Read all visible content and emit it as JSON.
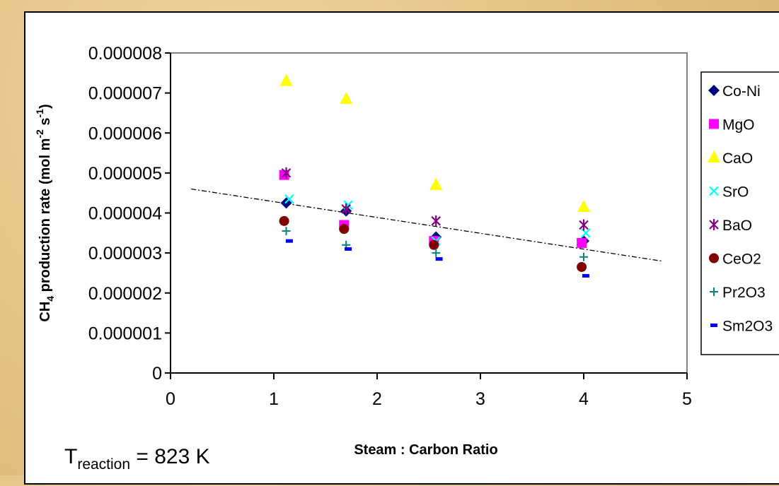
{
  "chart_data": {
    "type": "scatter",
    "title": "",
    "xlabel": "Steam : Carbon Ratio",
    "ylabel": {
      "prefix": "CH",
      "sub": "4",
      "rest": " production rate (mol m",
      "sup1": "-2",
      "mid": " s",
      "sup2": "-1",
      "end": ")"
    },
    "xlim": [
      0,
      5
    ],
    "ylim": [
      0,
      8e-06
    ],
    "xticks": [
      "0",
      "1",
      "2",
      "3",
      "4",
      "5"
    ],
    "yticks": [
      "0",
      "0.000001",
      "0.000002",
      "0.000003",
      "0.000004",
      "0.000005",
      "0.000006",
      "0.000007",
      "0.000008"
    ],
    "grid": false,
    "legend_position": "right",
    "series": [
      {
        "name": "Co-Ni",
        "marker": "diamond",
        "color": "#000080",
        "points": [
          [
            1.12,
            4.25e-06
          ],
          [
            1.7,
            4.05e-06
          ],
          [
            2.57,
            3.4e-06
          ],
          [
            4.0,
            3.3e-06
          ]
        ]
      },
      {
        "name": "MgO",
        "marker": "square",
        "color": "#ff00ff",
        "points": [
          [
            1.1,
            4.95e-06
          ],
          [
            1.68,
            3.7e-06
          ],
          [
            2.55,
            3.3e-06
          ],
          [
            3.98,
            3.25e-06
          ]
        ]
      },
      {
        "name": "CaO",
        "marker": "triangle",
        "color": "#ffff00",
        "points": [
          [
            1.12,
            7.3e-06
          ],
          [
            1.7,
            6.85e-06
          ],
          [
            2.57,
            4.7e-06
          ],
          [
            4.0,
            4.15e-06
          ]
        ]
      },
      {
        "name": "SrO",
        "marker": "x",
        "color": "#00ffff",
        "points": [
          [
            1.15,
            4.35e-06
          ],
          [
            1.72,
            4.2e-06
          ],
          [
            2.57,
            3.3e-06
          ],
          [
            4.02,
            3.5e-06
          ]
        ]
      },
      {
        "name": "BaO",
        "marker": "star",
        "color": "#800080",
        "points": [
          [
            1.12,
            5e-06
          ],
          [
            1.7,
            4.1e-06
          ],
          [
            2.57,
            3.8e-06
          ],
          [
            4.0,
            3.7e-06
          ]
        ]
      },
      {
        "name": "CeO2",
        "marker": "circle",
        "color": "#800000",
        "points": [
          [
            1.1,
            3.8e-06
          ],
          [
            1.68,
            3.6e-06
          ],
          [
            2.55,
            3.2e-06
          ],
          [
            3.98,
            2.65e-06
          ]
        ]
      },
      {
        "name": "Pr2O3",
        "marker": "plus",
        "color": "#008080",
        "points": [
          [
            1.12,
            3.55e-06
          ],
          [
            1.7,
            3.2e-06
          ],
          [
            2.57,
            3e-06
          ],
          [
            4.0,
            2.9e-06
          ]
        ]
      },
      {
        "name": "Sm2O3",
        "marker": "dash",
        "color": "#0000ff",
        "points": [
          [
            1.15,
            3.3e-06
          ],
          [
            1.72,
            3.1e-06
          ],
          [
            2.6,
            2.85e-06
          ],
          [
            4.02,
            2.43e-06
          ]
        ]
      }
    ],
    "trendline": {
      "style": "dash-dot",
      "color": "#000000",
      "from": [
        0.2,
        4.6e-06
      ],
      "to": [
        4.75,
        2.8e-06
      ]
    },
    "annotation": {
      "prefix": "T",
      "sub": "reaction",
      "rest": " = 823 K"
    }
  }
}
